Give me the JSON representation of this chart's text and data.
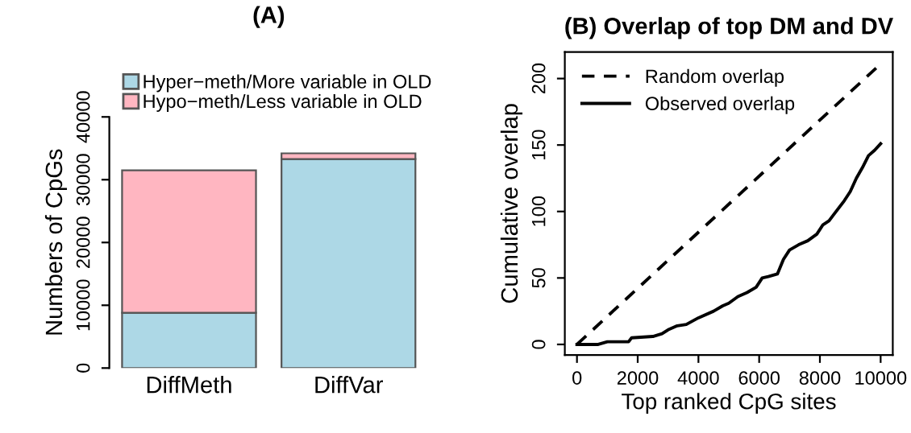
{
  "chart_data": [
    {
      "type": "bar",
      "title": "(A)",
      "ylabel": "Numbers of CpGs",
      "categories": [
        "DiffMeth",
        "DiffVar"
      ],
      "stacked": true,
      "legend": "top left",
      "grid": false,
      "series": [
        {
          "name": "Hyper−meth/More variable in OLD",
          "color": "#add8e6",
          "values": [
            8800,
            33300
          ]
        },
        {
          "name": "Hypo−meth/Less variable in OLD",
          "color": "#ffb6c1",
          "values": [
            22700,
            900
          ]
        }
      ],
      "ylim": [
        0,
        40000
      ],
      "yticks": [
        0,
        10000,
        20000,
        30000,
        40000
      ]
    },
    {
      "type": "line",
      "title": "(B) Overlap of top DM and DV",
      "xlabel": "Top ranked CpG sites",
      "ylabel": "Cumulative overlap",
      "legend": "top left",
      "grid": false,
      "series": [
        {
          "name": "Random overlap",
          "color": "#000000",
          "line_style": "dashed",
          "x": [
            0,
            10000
          ],
          "values": [
            0,
            211
          ]
        },
        {
          "name": "Observed overlap",
          "color": "#000000",
          "line_style": "solid",
          "x": [
            0,
            700,
            1000,
            1700,
            1800,
            2500,
            2800,
            3000,
            3300,
            3600,
            4000,
            4500,
            4800,
            5000,
            5300,
            5600,
            5900,
            6100,
            6300,
            6600,
            6800,
            7000,
            7300,
            7600,
            7900,
            8100,
            8300,
            8500,
            8800,
            9000,
            9200,
            9400,
            9600,
            9800,
            10000
          ],
          "values": [
            0,
            0,
            2,
            2,
            5,
            6,
            8,
            11,
            14,
            15,
            20,
            25,
            29,
            31,
            36,
            39,
            43,
            50,
            51,
            53,
            64,
            71,
            75,
            78,
            83,
            90,
            93,
            99,
            108,
            115,
            125,
            133,
            142,
            146,
            151
          ]
        }
      ],
      "xlim": [
        -400,
        10400
      ],
      "ylim": [
        -8,
        220
      ],
      "xticks": [
        0,
        2000,
        4000,
        6000,
        8000,
        10000
      ],
      "yticks": [
        0,
        50,
        100,
        150,
        200
      ]
    }
  ]
}
